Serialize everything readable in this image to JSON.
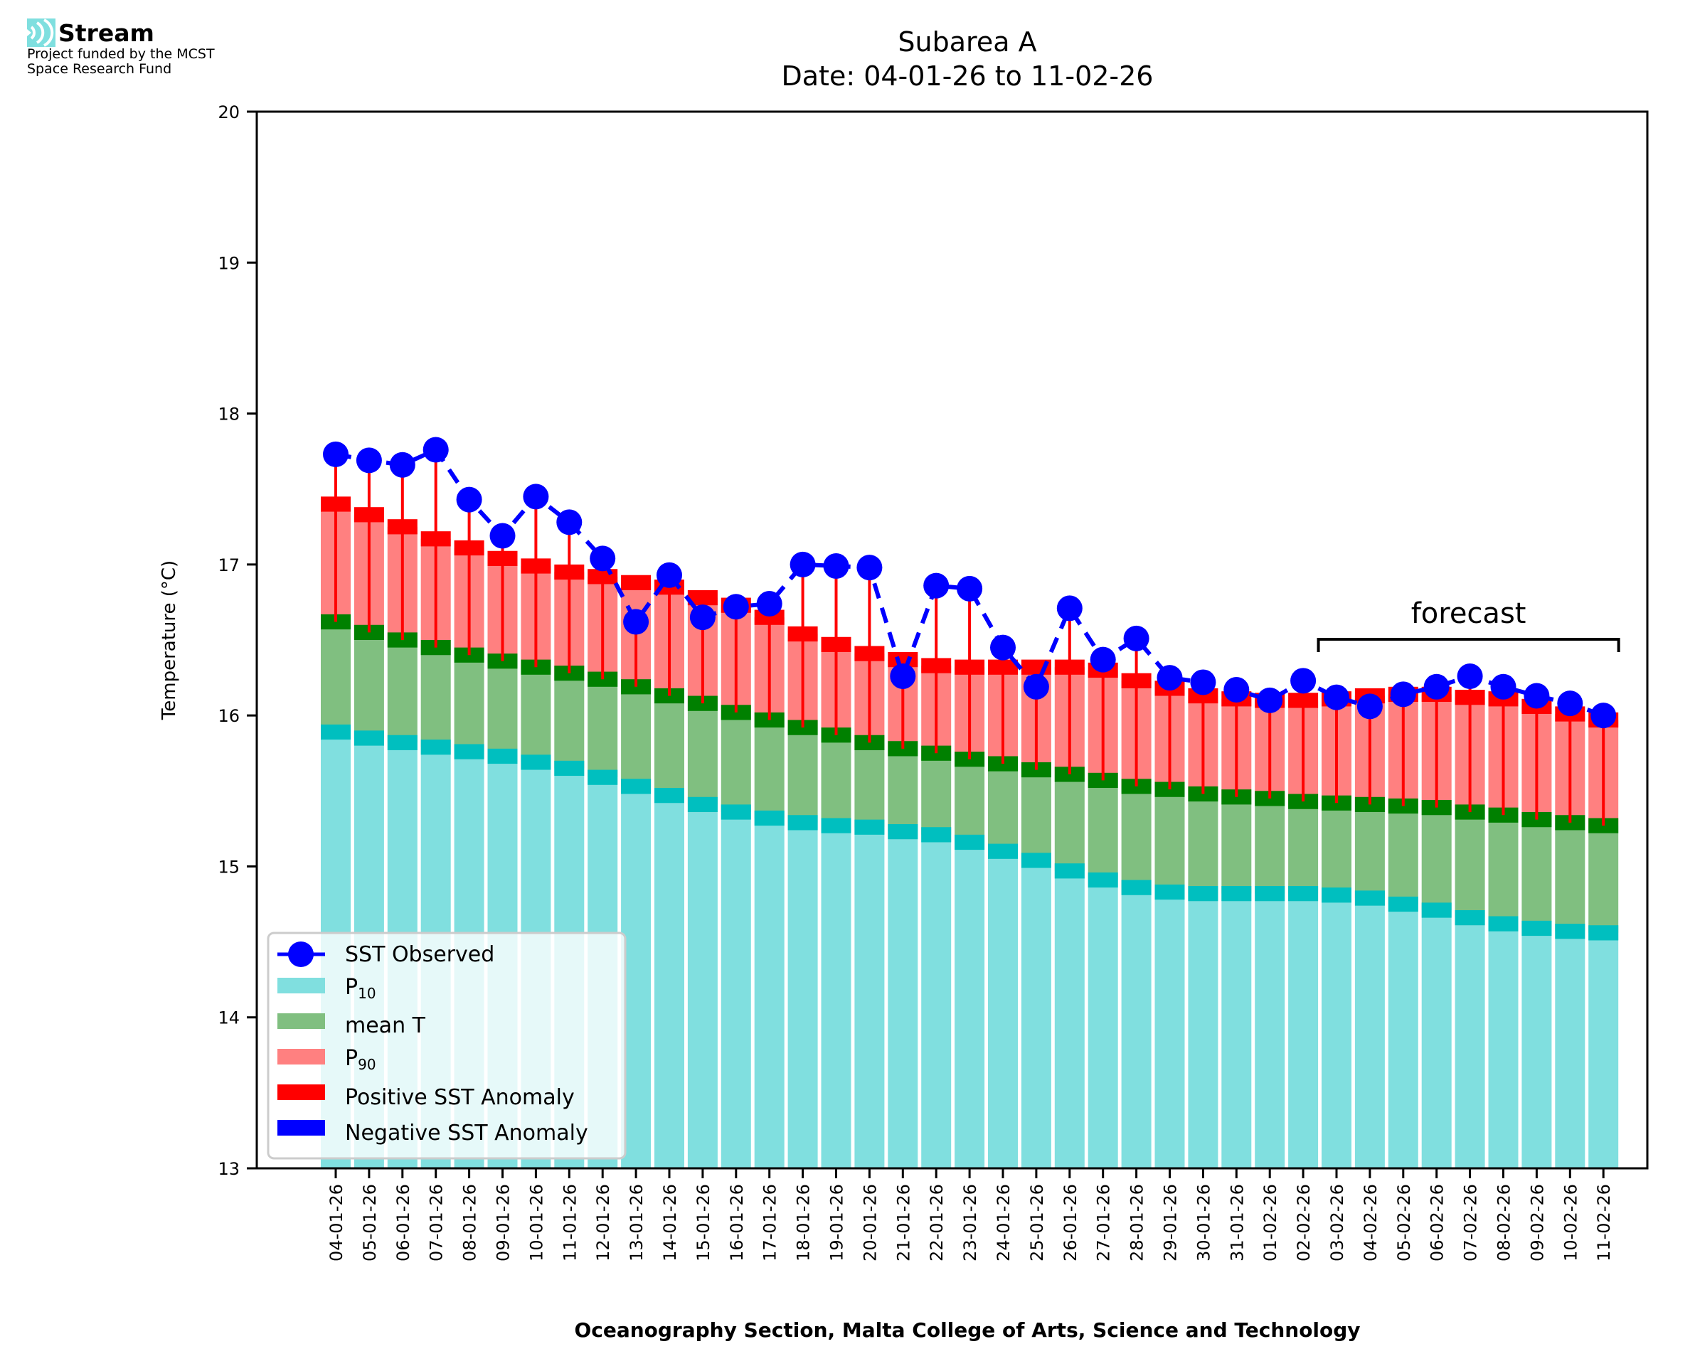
{
  "logo": {
    "brand": "Stream",
    "line1": "Project funded by the MCST",
    "line2": "Space Research Fund",
    "icon": "stream-waves-icon"
  },
  "colors": {
    "p10": "#80dfdf",
    "p10_edge": "#00bfbf",
    "mean": "#80bf80",
    "mean_edge": "#008000",
    "p90": "#ff8080",
    "p90_edge": "#ff0000",
    "sst": "#0000ff",
    "pos_anomaly": "#ff0000",
    "neg_anomaly": "#0000ff"
  },
  "chart_data": {
    "type": "bar",
    "title": "Subarea A",
    "subtitle": "Date: 04-01-26 to 11-02-26",
    "xlabel": "Oceanography Section, Malta College of Arts, Science and Technology",
    "ylabel": "Temperature (°C)",
    "ylim": [
      13,
      20
    ],
    "yticks": [
      13,
      14,
      15,
      16,
      17,
      18,
      19,
      20
    ],
    "grid": false,
    "legend_position": "lower-left",
    "legend": [
      "SST Observed",
      "P10",
      "mean T",
      "P90",
      "Positive SST Anomaly",
      "Negative SST Anomaly"
    ],
    "annotation": {
      "text": "forecast",
      "from": "03-02-26",
      "to": "11-02-26"
    },
    "categories": [
      "04-01-26",
      "05-01-26",
      "06-01-26",
      "07-01-26",
      "08-01-26",
      "09-01-26",
      "10-01-26",
      "11-01-26",
      "12-01-26",
      "13-01-26",
      "14-01-26",
      "15-01-26",
      "16-01-26",
      "17-01-26",
      "18-01-26",
      "19-01-26",
      "20-01-26",
      "21-01-26",
      "22-01-26",
      "23-01-26",
      "24-01-26",
      "25-01-26",
      "26-01-26",
      "27-01-26",
      "28-01-26",
      "29-01-26",
      "30-01-26",
      "31-01-26",
      "01-02-26",
      "02-02-26",
      "03-02-26",
      "04-02-26",
      "05-02-26",
      "06-02-26",
      "07-02-26",
      "08-02-26",
      "09-02-26",
      "10-02-26",
      "11-02-26"
    ],
    "series": [
      {
        "name": "P10",
        "values": [
          15.89,
          15.85,
          15.82,
          15.79,
          15.76,
          15.73,
          15.69,
          15.65,
          15.59,
          15.53,
          15.47,
          15.41,
          15.36,
          15.32,
          15.29,
          15.27,
          15.26,
          15.23,
          15.21,
          15.16,
          15.1,
          15.04,
          14.97,
          14.91,
          14.86,
          14.83,
          14.82,
          14.82,
          14.82,
          14.82,
          14.81,
          14.79,
          14.75,
          14.71,
          14.66,
          14.62,
          14.59,
          14.57,
          14.56
        ]
      },
      {
        "name": "mean T",
        "values": [
          16.62,
          16.55,
          16.5,
          16.45,
          16.4,
          16.36,
          16.32,
          16.28,
          16.24,
          16.19,
          16.13,
          16.08,
          16.02,
          15.97,
          15.92,
          15.87,
          15.82,
          15.78,
          15.75,
          15.71,
          15.68,
          15.64,
          15.61,
          15.57,
          15.53,
          15.51,
          15.48,
          15.46,
          15.45,
          15.43,
          15.42,
          15.41,
          15.4,
          15.39,
          15.36,
          15.34,
          15.31,
          15.29,
          15.27
        ]
      },
      {
        "name": "P90",
        "values": [
          17.4,
          17.33,
          17.25,
          17.17,
          17.11,
          17.04,
          16.99,
          16.95,
          16.92,
          16.88,
          16.85,
          16.78,
          16.73,
          16.65,
          16.54,
          16.47,
          16.41,
          16.37,
          16.33,
          16.32,
          16.32,
          16.32,
          16.32,
          16.3,
          16.23,
          16.18,
          16.13,
          16.11,
          16.1,
          16.1,
          16.11,
          16.13,
          16.14,
          16.14,
          16.12,
          16.11,
          16.06,
          16.01,
          15.97
        ]
      },
      {
        "name": "SST Observed",
        "values": [
          17.73,
          17.69,
          17.66,
          17.76,
          17.43,
          17.19,
          17.45,
          17.28,
          17.04,
          16.62,
          16.93,
          16.65,
          16.72,
          16.74,
          17.0,
          16.99,
          16.98,
          16.26,
          16.86,
          16.84,
          16.45,
          16.19,
          16.71,
          16.37,
          16.51,
          16.25,
          16.22,
          16.17,
          16.1,
          16.23,
          16.12,
          16.06,
          16.14,
          16.19,
          16.26,
          16.19,
          16.13,
          16.08,
          16.0
        ]
      }
    ]
  }
}
